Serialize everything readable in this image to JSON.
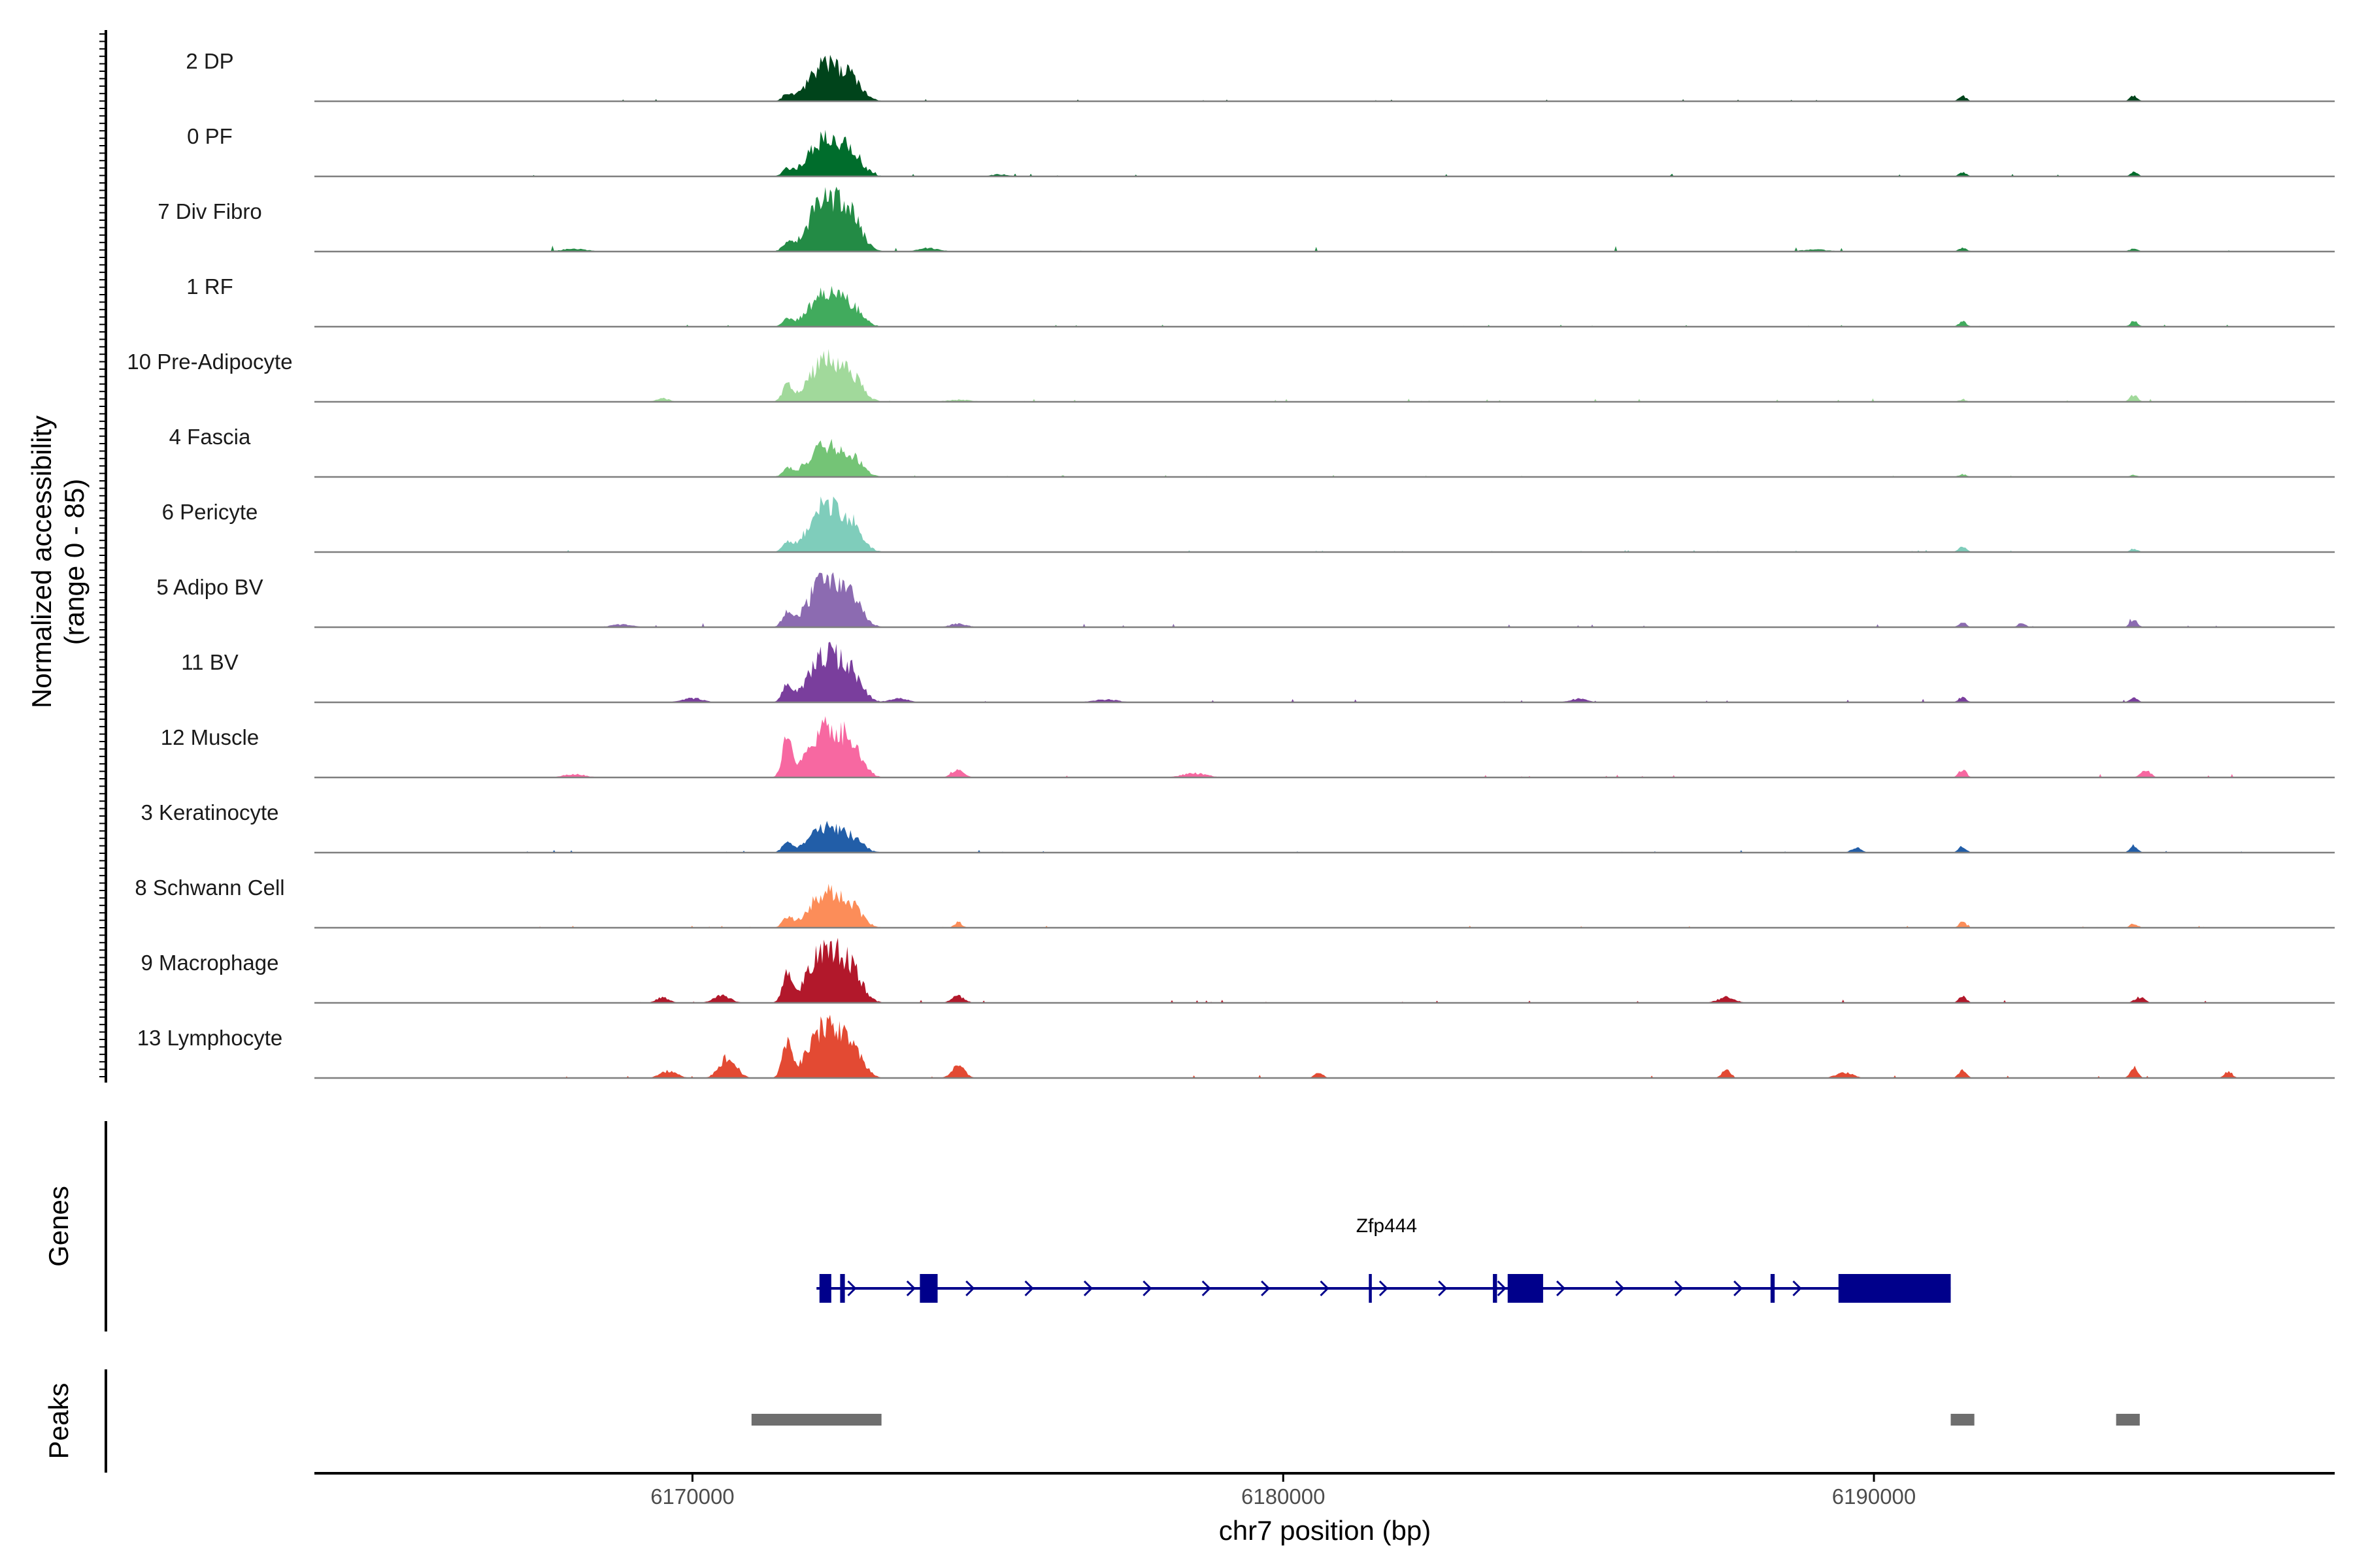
{
  "chart_data": {
    "type": "area",
    "title": "",
    "xlabel": "chr7 position (bp)",
    "ylabel": "Normalized accessibility",
    "ylabel_range": "(range 0 - 85)",
    "ylim": [
      0,
      85
    ],
    "xlim": [
      6163600,
      6197800
    ],
    "x_ticks": [
      6170000,
      6180000,
      6190000
    ],
    "x_tick_labels": [
      "6170000",
      "6180000",
      "6190000"
    ],
    "panel_labels": {
      "genes": "Genes",
      "peaks": "Peaks"
    },
    "tracks": [
      {
        "name": "2 DP",
        "color": "#00441b",
        "main_peak": 58,
        "bg": 0.6,
        "extra": [
          [
            6171600,
            8,
            110
          ],
          [
            6191500,
            8,
            90
          ],
          [
            6194400,
            8,
            90
          ]
        ]
      },
      {
        "name": "0 PF",
        "color": "#006d2c",
        "main_peak": 60,
        "bg": 0.8,
        "extra": [
          [
            6171600,
            9,
            110
          ],
          [
            6191500,
            6,
            90
          ],
          [
            6194400,
            6,
            90
          ],
          [
            6175200,
            3,
            200
          ]
        ]
      },
      {
        "name": "7 Div Fibro",
        "color": "#238b45",
        "main_peak": 85,
        "bg": 1.6,
        "extra": [
          [
            6171600,
            10,
            110
          ],
          [
            6166000,
            3,
            300
          ],
          [
            6168000,
            4,
            300
          ],
          [
            6174000,
            5,
            250
          ],
          [
            6189000,
            3,
            300
          ],
          [
            6191500,
            5,
            100
          ],
          [
            6194400,
            4,
            100
          ]
        ]
      },
      {
        "name": "1 RF",
        "color": "#41ab5d",
        "main_peak": 50,
        "bg": 0.6,
        "extra": [
          [
            6171600,
            10,
            110
          ],
          [
            6191500,
            8,
            90
          ],
          [
            6194400,
            8,
            90
          ]
        ]
      },
      {
        "name": "10 Pre-Adipocyte",
        "color": "#a1d99b",
        "main_peak": 65,
        "bg": 1.0,
        "extra": [
          [
            6171600,
            22,
            110
          ],
          [
            6169500,
            5,
            150
          ],
          [
            6174500,
            3,
            300
          ],
          [
            6191500,
            3,
            90
          ],
          [
            6194400,
            10,
            90
          ],
          [
            6196500,
            3,
            200
          ]
        ]
      },
      {
        "name": "4 Fascia",
        "color": "#74c476",
        "main_peak": 50,
        "bg": 0.5,
        "extra": [
          [
            6171600,
            10,
            110
          ],
          [
            6191500,
            4,
            90
          ],
          [
            6194400,
            3,
            90
          ]
        ]
      },
      {
        "name": "6 Pericyte",
        "color": "#7fcdbb",
        "main_peak": 72,
        "bg": 0.6,
        "extra": [
          [
            6171600,
            12,
            110
          ],
          [
            6191500,
            8,
            90
          ],
          [
            6194400,
            5,
            90
          ]
        ]
      },
      {
        "name": "5 Adipo BV",
        "color": "#8c6bb1",
        "main_peak": 75,
        "bg": 1.2,
        "extra": [
          [
            6171600,
            20,
            110
          ],
          [
            6168800,
            4,
            250
          ],
          [
            6174500,
            5,
            200
          ],
          [
            6191500,
            7,
            90
          ],
          [
            6192500,
            6,
            90
          ],
          [
            6194400,
            10,
            90
          ]
        ]
      },
      {
        "name": "11 BV",
        "color": "#7a3e9d",
        "main_peak": 75,
        "bg": 1.0,
        "extra": [
          [
            6171600,
            22,
            110
          ],
          [
            6170000,
            6,
            250
          ],
          [
            6173500,
            6,
            200
          ],
          [
            6177000,
            4,
            300
          ],
          [
            6185000,
            5,
            200
          ],
          [
            6191500,
            8,
            90
          ],
          [
            6194400,
            8,
            90
          ]
        ]
      },
      {
        "name": "12 Muscle",
        "color": "#f768a1",
        "main_peak": 80,
        "bg": 1.0,
        "extra": [
          [
            6171600,
            55,
            110
          ],
          [
            6168000,
            5,
            250
          ],
          [
            6174500,
            10,
            150
          ],
          [
            6178500,
            6,
            300
          ],
          [
            6191500,
            12,
            90
          ],
          [
            6194600,
            10,
            120
          ]
        ]
      },
      {
        "name": "3 Keratinocyte",
        "color": "#225ea8",
        "main_peak": 38,
        "bg": 0.8,
        "extra": [
          [
            6171600,
            15,
            110
          ],
          [
            6189700,
            8,
            110
          ],
          [
            6191500,
            9,
            90
          ],
          [
            6194400,
            10,
            90
          ]
        ]
      },
      {
        "name": "8 Schwann Cell",
        "color": "#fc8d59",
        "main_peak": 55,
        "bg": 0.6,
        "extra": [
          [
            6171600,
            14,
            110
          ],
          [
            6174500,
            8,
            90
          ],
          [
            6191500,
            8,
            90
          ],
          [
            6194400,
            6,
            90
          ]
        ]
      },
      {
        "name": "9 Macrophage",
        "color": "#b2182b",
        "main_peak": 85,
        "bg": 1.0,
        "extra": [
          [
            6171600,
            40,
            110
          ],
          [
            6170500,
            10,
            200
          ],
          [
            6169500,
            8,
            150
          ],
          [
            6174500,
            10,
            150
          ],
          [
            6187500,
            8,
            200
          ],
          [
            6191500,
            10,
            90
          ],
          [
            6194500,
            8,
            120
          ]
        ]
      },
      {
        "name": "13 Lymphocyte",
        "color": "#e34a33",
        "main_peak": 80,
        "bg": 0.9,
        "extra": [
          [
            6171600,
            50,
            110
          ],
          [
            6170600,
            30,
            200
          ],
          [
            6169600,
            10,
            200
          ],
          [
            6174500,
            20,
            150
          ],
          [
            6180600,
            8,
            100
          ],
          [
            6187500,
            12,
            100
          ],
          [
            6189500,
            8,
            200
          ],
          [
            6191500,
            12,
            90
          ],
          [
            6194400,
            15,
            90
          ],
          [
            6196000,
            10,
            90
          ]
        ]
      }
    ],
    "gene": {
      "name": "Zfp444",
      "color": "#00008b",
      "start": 6172100,
      "end": 6191300,
      "strand": "+",
      "exons": [
        [
          6172150,
          6172350
        ],
        [
          6172500,
          6172580
        ],
        [
          6173850,
          6174150
        ],
        [
          6181450,
          6181500
        ],
        [
          6183550,
          6183620
        ],
        [
          6183800,
          6184400
        ],
        [
          6188250,
          6188320
        ],
        [
          6189400,
          6191300
        ]
      ]
    },
    "peaks": [
      [
        6171000,
        6173200
      ],
      [
        6191300,
        6191700
      ],
      [
        6194100,
        6194500
      ]
    ],
    "colors": {
      "axis": "#000000",
      "baseline": "#7f7f7f",
      "peak": "#6e6e6e"
    }
  }
}
